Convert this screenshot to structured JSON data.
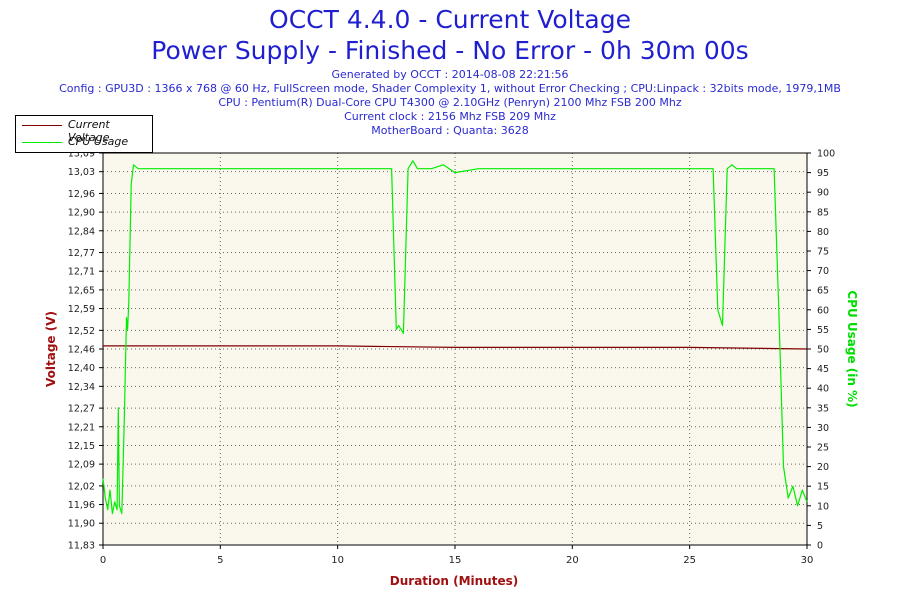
{
  "header": {
    "title": "OCCT 4.4.0 - Current Voltage",
    "subtitle": "Power Supply - Finished - No Error - 0h 30m 00s",
    "info_lines": [
      "Generated by OCCT : 2014-08-08 22:21:56",
      "Config : GPU3D : 1366 x 768 @ 60 Hz, FullScreen mode, Shader Complexity 1, without Error Checking ; CPU:Linpack : 32bits mode, 1979,1MB",
      "CPU : Pentium(R) Dual-Core CPU T4300 @ 2.10GHz (Penryn) 2100 Mhz FSB 200 Mhz",
      "Current clock : 2156 Mhz FSB 209 Mhz",
      "MotherBoard : Quanta: 3628"
    ]
  },
  "legend": {
    "items": [
      {
        "label": "Current Voltage",
        "color": "#800000"
      },
      {
        "label": "CPU Usage",
        "color": "#00ee00"
      }
    ]
  },
  "colors": {
    "plot_background": "#faf8ec",
    "voltage": "#800000",
    "cpu": "#00ee00",
    "axis_title_left": "#a01010",
    "axis_title_right": "#00dd00",
    "axis_title_bottom": "#a01010"
  },
  "chart_data": {
    "type": "line",
    "xlabel": "Duration (Minutes)",
    "ylabel": "Voltage (V)",
    "y2label": "CPU Usage (in %)",
    "xlim": [
      0,
      30
    ],
    "ylim": [
      11.83,
      13.09
    ],
    "y2lim": [
      0,
      100
    ],
    "x_ticks": [
      0,
      5,
      10,
      15,
      20,
      25,
      30
    ],
    "y_tick_values": [
      11.83,
      11.9,
      11.96,
      12.02,
      12.09,
      12.15,
      12.21,
      12.27,
      12.34,
      12.4,
      12.46,
      12.52,
      12.59,
      12.65,
      12.71,
      12.77,
      12.84,
      12.9,
      12.96,
      13.03,
      13.09
    ],
    "y_tick_labels": [
      "11,83",
      "11,90",
      "11,96",
      "12,02",
      "12,09",
      "12,15",
      "12,21",
      "12,27",
      "12,34",
      "12,40",
      "12,46",
      "12,52",
      "12,59",
      "12,65",
      "12,71",
      "12,77",
      "12,84",
      "12,90",
      "12,96",
      "13,03",
      "13,09"
    ],
    "y2_ticks": [
      0,
      5,
      10,
      15,
      20,
      25,
      30,
      35,
      40,
      45,
      50,
      55,
      60,
      65,
      70,
      75,
      80,
      85,
      90,
      95,
      100
    ],
    "grid": true,
    "legend_position": "top-left",
    "series": [
      {
        "name": "Current Voltage",
        "axis": "left",
        "x": [
          0,
          5,
          10,
          15,
          20,
          25,
          30
        ],
        "y": [
          12.47,
          12.47,
          12.47,
          12.465,
          12.465,
          12.465,
          12.46
        ]
      },
      {
        "name": "CPU Usage",
        "axis": "right",
        "x": [
          0,
          0.1,
          0.2,
          0.3,
          0.4,
          0.5,
          0.6,
          0.65,
          0.7,
          0.8,
          0.9,
          1.0,
          1.05,
          1.1,
          1.2,
          1.3,
          1.5,
          2.0,
          3.0,
          4.0,
          5.0,
          6.0,
          7.0,
          8.0,
          9.0,
          10.0,
          11.0,
          12.0,
          12.3,
          12.5,
          12.6,
          12.8,
          13.0,
          13.2,
          13.4,
          13.5,
          14.0,
          14.5,
          15.0,
          16.0,
          17.0,
          18.0,
          19.0,
          20.0,
          21.0,
          22.0,
          23.0,
          24.0,
          25.0,
          25.5,
          26.0,
          26.2,
          26.4,
          26.6,
          26.8,
          27.0,
          28.0,
          28.6,
          28.8,
          29.0,
          29.2,
          29.4,
          29.6,
          29.8,
          30.0
        ],
        "y": [
          17,
          12,
          9,
          14,
          8,
          11,
          9,
          35,
          10,
          8,
          30,
          58,
          55,
          62,
          92,
          97,
          96,
          96,
          96,
          96,
          96,
          96,
          96,
          96,
          96,
          96,
          96,
          96,
          96,
          55,
          56,
          54,
          96,
          98,
          96,
          96,
          96,
          97,
          95,
          96,
          96,
          96,
          96,
          96,
          96,
          96,
          96,
          96,
          96,
          96,
          96,
          60,
          56,
          96,
          97,
          96,
          96,
          96,
          60,
          20,
          12,
          15,
          10,
          14,
          11
        ]
      }
    ]
  }
}
